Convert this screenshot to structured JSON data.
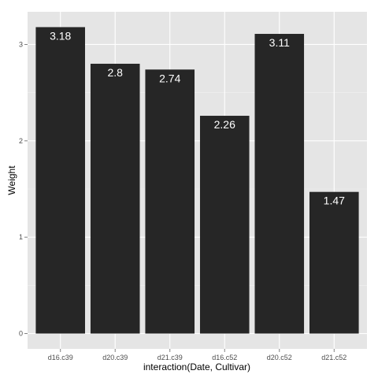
{
  "chart_data": {
    "type": "bar",
    "title": "",
    "xlabel": "interaction(Date, Cultivar)",
    "ylabel": "Weight",
    "categories": [
      "d16.c39",
      "d20.c39",
      "d21.c39",
      "d16.c52",
      "d20.c52",
      "d21.c52"
    ],
    "values": [
      3.18,
      2.8,
      2.74,
      2.26,
      3.11,
      1.47
    ],
    "data_labels": [
      "3.18",
      "2.8",
      "2.74",
      "2.26",
      "3.11",
      "1.47"
    ],
    "y_ticks": [
      0,
      1,
      2,
      3
    ],
    "ylim": [
      -0.159,
      3.339
    ],
    "grid": true,
    "legend": "none",
    "colors": {
      "panel_background": "#e5e5e5",
      "grid_major": "#ffffff",
      "grid_minor": "#f2f2f2",
      "bar_fill": "#262626",
      "bar_label": "#ffffff",
      "tick_label": "#4d4d4d",
      "tick_mark": "#7f7f7f"
    }
  }
}
